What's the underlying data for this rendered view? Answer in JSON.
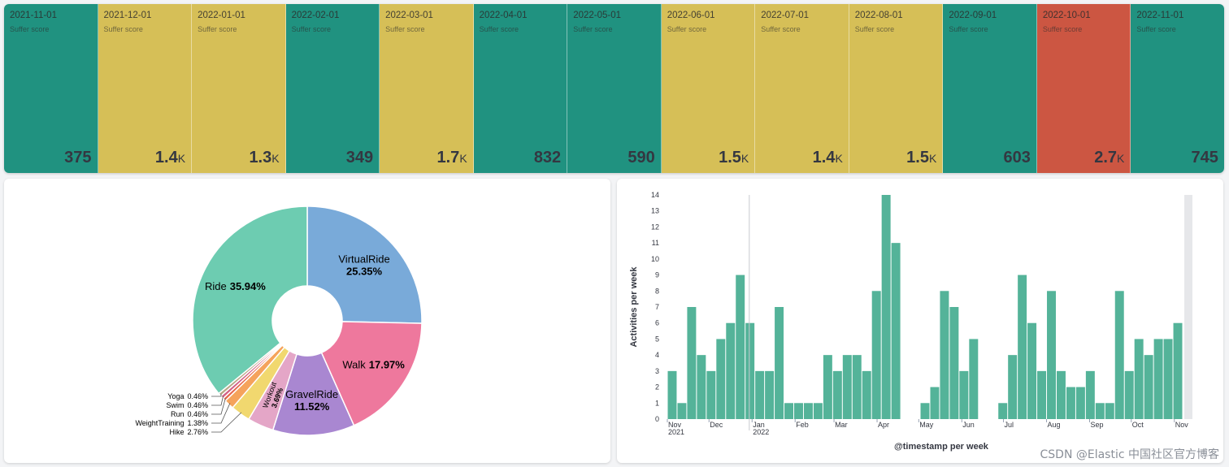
{
  "metrics": {
    "label": "Suffer score",
    "colors": {
      "green": "#209280",
      "yellow": "#d6bf57",
      "red": "#cc5642"
    },
    "tiles": [
      {
        "date": "2021-11-01",
        "value": "375",
        "suffix": "",
        "color": "green"
      },
      {
        "date": "2021-12-01",
        "value": "1.4",
        "suffix": "K",
        "color": "yellow"
      },
      {
        "date": "2022-01-01",
        "value": "1.3",
        "suffix": "K",
        "color": "yellow"
      },
      {
        "date": "2022-02-01",
        "value": "349",
        "suffix": "",
        "color": "green"
      },
      {
        "date": "2022-03-01",
        "value": "1.7",
        "suffix": "K",
        "color": "yellow"
      },
      {
        "date": "2022-04-01",
        "value": "832",
        "suffix": "",
        "color": "green"
      },
      {
        "date": "2022-05-01",
        "value": "590",
        "suffix": "",
        "color": "green"
      },
      {
        "date": "2022-06-01",
        "value": "1.5",
        "suffix": "K",
        "color": "yellow"
      },
      {
        "date": "2022-07-01",
        "value": "1.4",
        "suffix": "K",
        "color": "yellow"
      },
      {
        "date": "2022-08-01",
        "value": "1.5",
        "suffix": "K",
        "color": "yellow"
      },
      {
        "date": "2022-09-01",
        "value": "603",
        "suffix": "",
        "color": "green"
      },
      {
        "date": "2022-10-01",
        "value": "2.7",
        "suffix": "K",
        "color": "red"
      },
      {
        "date": "2022-11-01",
        "value": "745",
        "suffix": "",
        "color": "green"
      }
    ]
  },
  "chart_data": [
    {
      "type": "pie",
      "donut": true,
      "slices": [
        {
          "label": "VirtualRide",
          "value": 25.35,
          "text": "25.35%",
          "color": "#79aad9"
        },
        {
          "label": "Walk",
          "value": 17.97,
          "text": "17.97%",
          "color": "#ee789d"
        },
        {
          "label": "GravelRide",
          "value": 11.52,
          "text": "11.52%",
          "color": "#a987d1"
        },
        {
          "label": "Workout",
          "value": 3.69,
          "text": "3.69%",
          "color": "#e4a6c7"
        },
        {
          "label": "Hike",
          "value": 2.76,
          "text": "2.76%",
          "color": "#f1d86f"
        },
        {
          "label": "WeightTraining",
          "value": 1.38,
          "text": "1.38%",
          "color": "#f5a35c"
        },
        {
          "label": "Run",
          "value": 0.46,
          "text": "0.46%",
          "color": "#e7664c"
        },
        {
          "label": "Swim",
          "value": 0.46,
          "text": "0.46%",
          "color": "#d36086"
        },
        {
          "label": "Yoga",
          "value": 0.46,
          "text": "0.46%",
          "color": "#b9a888"
        },
        {
          "label": "Ride",
          "value": 35.94,
          "text": "35.94%",
          "color": "#6dccb1"
        }
      ]
    },
    {
      "type": "bar",
      "xlabel": "@timestamp per week",
      "ylabel": "Activities per week",
      "ylim": [
        0,
        14
      ],
      "y_ticks": [
        "0",
        "1",
        "2",
        "3",
        "4",
        "5",
        "6",
        "7",
        "8",
        "9",
        "10",
        "11",
        "12",
        "13",
        "14"
      ],
      "x_start": "2021-11-01",
      "x_end": "2022-11-07",
      "x_ticks": [
        {
          "label": "Nov",
          "sub": "2021",
          "date": "2021-11-01"
        },
        {
          "label": "Dec",
          "sub": "",
          "date": "2021-12-01"
        },
        {
          "label": "Jan",
          "sub": "2022",
          "date": "2022-01-01"
        },
        {
          "label": "Feb",
          "sub": "",
          "date": "2022-02-01"
        },
        {
          "label": "Mar",
          "sub": "",
          "date": "2022-03-01"
        },
        {
          "label": "Apr",
          "sub": "",
          "date": "2022-04-01"
        },
        {
          "label": "May",
          "sub": "",
          "date": "2022-05-01"
        },
        {
          "label": "Jun",
          "sub": "",
          "date": "2022-06-01"
        },
        {
          "label": "Jul",
          "sub": "",
          "date": "2022-07-01"
        },
        {
          "label": "Aug",
          "sub": "",
          "date": "2022-08-01"
        },
        {
          "label": "Sep",
          "sub": "",
          "date": "2022-09-01"
        },
        {
          "label": "Oct",
          "sub": "",
          "date": "2022-10-01"
        },
        {
          "label": "Nov",
          "sub": "",
          "date": "2022-11-01"
        }
      ],
      "bar_color": "#54b399",
      "weeks": [
        {
          "x": "2021-11-01",
          "y": 3
        },
        {
          "x": "2021-11-08",
          "y": 1
        },
        {
          "x": "2021-11-15",
          "y": 7
        },
        {
          "x": "2021-11-22",
          "y": 4
        },
        {
          "x": "2021-11-29",
          "y": 3
        },
        {
          "x": "2021-12-06",
          "y": 5
        },
        {
          "x": "2021-12-13",
          "y": 6
        },
        {
          "x": "2021-12-20",
          "y": 9
        },
        {
          "x": "2021-12-27",
          "y": 6
        },
        {
          "x": "2022-01-03",
          "y": 3
        },
        {
          "x": "2022-01-10",
          "y": 3
        },
        {
          "x": "2022-01-17",
          "y": 7
        },
        {
          "x": "2022-01-24",
          "y": 1
        },
        {
          "x": "2022-01-31",
          "y": 1
        },
        {
          "x": "2022-02-07",
          "y": 1
        },
        {
          "x": "2022-02-14",
          "y": 1
        },
        {
          "x": "2022-02-21",
          "y": 4
        },
        {
          "x": "2022-02-28",
          "y": 3
        },
        {
          "x": "2022-03-07",
          "y": 4
        },
        {
          "x": "2022-03-14",
          "y": 4
        },
        {
          "x": "2022-03-21",
          "y": 3
        },
        {
          "x": "2022-03-28",
          "y": 8
        },
        {
          "x": "2022-04-04",
          "y": 14
        },
        {
          "x": "2022-04-11",
          "y": 11
        },
        {
          "x": "2022-04-18",
          "y": 0
        },
        {
          "x": "2022-04-25",
          "y": 0
        },
        {
          "x": "2022-05-02",
          "y": 1
        },
        {
          "x": "2022-05-09",
          "y": 2
        },
        {
          "x": "2022-05-16",
          "y": 8
        },
        {
          "x": "2022-05-23",
          "y": 7
        },
        {
          "x": "2022-05-30",
          "y": 3
        },
        {
          "x": "2022-06-06",
          "y": 5
        },
        {
          "x": "2022-06-13",
          "y": 0
        },
        {
          "x": "2022-06-20",
          "y": 0
        },
        {
          "x": "2022-06-27",
          "y": 1
        },
        {
          "x": "2022-07-04",
          "y": 4
        },
        {
          "x": "2022-07-11",
          "y": 9
        },
        {
          "x": "2022-07-18",
          "y": 6
        },
        {
          "x": "2022-07-25",
          "y": 3
        },
        {
          "x": "2022-08-01",
          "y": 8
        },
        {
          "x": "2022-08-08",
          "y": 3
        },
        {
          "x": "2022-08-15",
          "y": 2
        },
        {
          "x": "2022-08-22",
          "y": 2
        },
        {
          "x": "2022-08-29",
          "y": 3
        },
        {
          "x": "2022-09-05",
          "y": 1
        },
        {
          "x": "2022-09-12",
          "y": 1
        },
        {
          "x": "2022-09-19",
          "y": 8
        },
        {
          "x": "2022-09-26",
          "y": 3
        },
        {
          "x": "2022-10-03",
          "y": 5
        },
        {
          "x": "2022-10-10",
          "y": 4
        },
        {
          "x": "2022-10-17",
          "y": 5
        },
        {
          "x": "2022-10-24",
          "y": 5
        },
        {
          "x": "2022-10-31",
          "y": 6
        }
      ]
    }
  ],
  "watermark": "CSDN @Elastic 中国社区官方博客"
}
